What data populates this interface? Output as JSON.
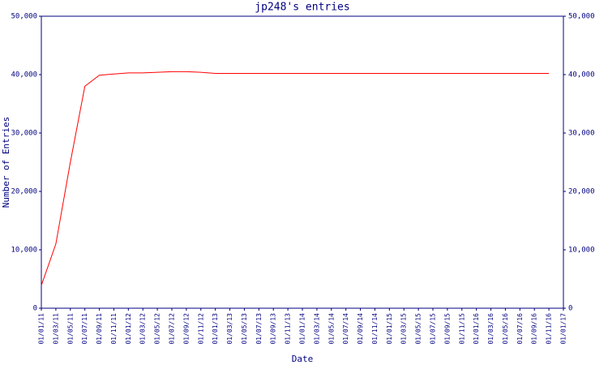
{
  "chart_data": {
    "type": "line",
    "title": "jp248's entries",
    "x_label": "Date",
    "y_label": "Number of Entries",
    "categories": [
      "01/01/11",
      "01/03/11",
      "01/05/11",
      "01/07/11",
      "01/09/11",
      "01/11/11",
      "01/01/12",
      "01/03/12",
      "01/05/12",
      "01/07/12",
      "01/09/12",
      "01/11/12",
      "01/01/13",
      "01/03/13",
      "01/05/13",
      "01/07/13",
      "01/09/13",
      "01/11/13",
      "01/01/14",
      "01/03/14",
      "01/05/14",
      "01/07/14",
      "01/09/14",
      "01/11/14",
      "01/01/15",
      "01/03/15",
      "01/05/15",
      "01/07/15",
      "01/09/15",
      "01/11/15",
      "01/01/16",
      "01/03/16",
      "01/05/16",
      "01/07/16",
      "01/09/16",
      "01/11/16",
      "01/01/17"
    ],
    "series": [
      {
        "name": "Entries",
        "color": "#ff0000",
        "values": [
          3900,
          11000,
          25000,
          38000,
          39900,
          40100,
          40300,
          40300,
          40400,
          40500,
          40500,
          40400,
          40200,
          40200,
          40200,
          40200,
          40200,
          40200,
          40200,
          40200,
          40200,
          40200,
          40200,
          40200,
          40200,
          40200,
          40200,
          40200,
          40200,
          40200,
          40200,
          40200,
          40200,
          40200,
          40200,
          40200,
          null
        ]
      }
    ],
    "ylim": [
      0,
      50000
    ],
    "yticks": [
      0,
      {
        "value": 10000,
        "label": "10,000"
      },
      {
        "value": 20000,
        "label": "20,000"
      },
      {
        "value": 30000,
        "label": "30,000"
      },
      {
        "value": 40000,
        "label": "40,000"
      },
      {
        "value": 50000,
        "label": "50,000"
      }
    ],
    "y2lim": [
      0,
      50000
    ],
    "y2ticks": [
      0,
      {
        "value": 10000,
        "label": "10,000"
      },
      {
        "value": 20000,
        "label": "20,000"
      },
      {
        "value": 30000,
        "label": "30,000"
      },
      {
        "value": 40000,
        "label": "40,000"
      },
      {
        "value": 50000,
        "label": "50,000"
      }
    ],
    "grid": false
  }
}
